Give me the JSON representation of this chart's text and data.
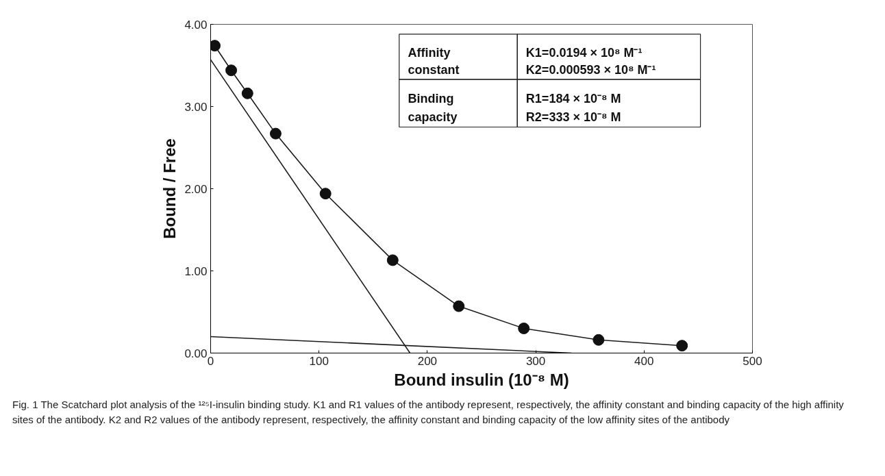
{
  "chart_data": {
    "type": "scatter",
    "xlabel": "Bound insulin (10⁻⁸ M)",
    "ylabel": "Bound / Free",
    "xlim": [
      0,
      500
    ],
    "ylim": [
      0,
      4
    ],
    "xticks": [
      0,
      100,
      200,
      300,
      400,
      500
    ],
    "yticks": [
      {
        "value": 0,
        "label": "0.00"
      },
      {
        "value": 1,
        "label": "1.00"
      },
      {
        "value": 2,
        "label": "2.00"
      },
      {
        "value": 3,
        "label": "3.00"
      },
      {
        "value": 4,
        "label": "4.00"
      }
    ],
    "grid": false,
    "marker": "circle",
    "series": [
      {
        "type": "line",
        "marker": "none",
        "color": "#1a1a1a",
        "x": [
          3.8,
          19,
          34,
          60,
          106,
          168,
          229,
          289,
          358,
          435
        ],
        "values": [
          3.74,
          3.44,
          3.16,
          2.67,
          1.94,
          1.13,
          0.57,
          0.3,
          0.16,
          0.09
        ]
      },
      {
        "type": "line",
        "marker": "none",
        "color": "#1a1a1a",
        "x": [
          0,
          184
        ],
        "values": [
          3.57,
          0
        ]
      },
      {
        "type": "line",
        "marker": "none",
        "color": "#1a1a1a",
        "x": [
          0,
          333
        ],
        "values": [
          0.2,
          0
        ]
      },
      {
        "color": "#111111",
        "x": [
          3.8,
          19,
          34,
          60,
          106,
          168,
          229,
          289,
          358,
          435
        ],
        "values": [
          3.74,
          3.44,
          3.16,
          2.67,
          1.94,
          1.13,
          0.57,
          0.3,
          0.16,
          0.09
        ]
      }
    ],
    "annotations": [
      "Affinity\nconstant",
      "K1=0.0194 × 10⁸ M⁻¹\nK2=0.000593 × 10⁸ M⁻¹",
      "Binding\ncapacity",
      "R1=184 × 10⁻⁸ M\nR2=333 × 10⁻⁸ M",
      "Fig. 1 The Scatchard plot analysis of the ¹²⁵I-insulin binding study. K1 and R1 values of the antibody represent, respectively, the affinity constant and binding capacity of the high affinity sites of the antibody. K2 and R2 values of the antibody represent, respectively, the affinity constant and binding capacity of the low affinity sites of the antibody"
    ]
  }
}
